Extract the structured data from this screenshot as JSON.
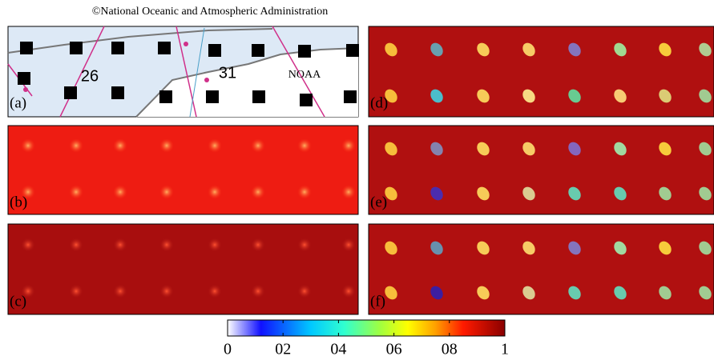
{
  "credit": "©National Oceanic and Atmospheric Administration",
  "panels": [
    {
      "label": "(a)"
    },
    {
      "label": "(b)"
    },
    {
      "label": "(c)"
    },
    {
      "label": "(d)"
    },
    {
      "label": "(e)"
    },
    {
      "label": "(f)"
    }
  ],
  "map": {
    "labels": [
      "26",
      "31",
      "NOAA"
    ]
  },
  "colorbar": {
    "lim": [
      0,
      1
    ],
    "ticks": [
      0,
      {
        "value": 0.2,
        "label": "02"
      },
      {
        "value": 0.4,
        "label": "04"
      },
      {
        "value": 0.6,
        "label": "06"
      },
      {
        "value": 0.8,
        "label": "08"
      },
      1
    ]
  }
}
